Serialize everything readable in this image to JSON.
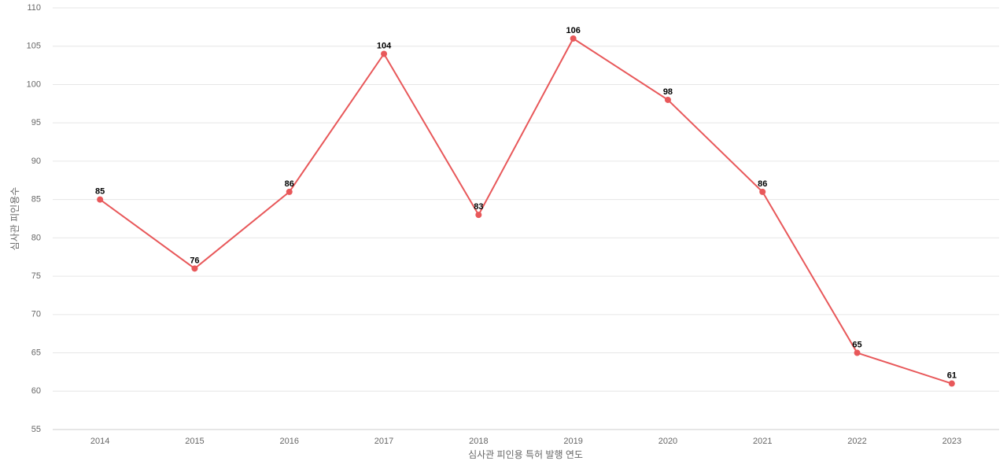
{
  "chart_data": {
    "type": "line",
    "x_label": "심사관 피인용 특허 발행 연도",
    "y_label": "심사관 피인용수",
    "categories": [
      "2014",
      "2015",
      "2016",
      "2017",
      "2018",
      "2019",
      "2020",
      "2021",
      "2022",
      "2023"
    ],
    "values": [
      85,
      76,
      86,
      104,
      83,
      106,
      98,
      86,
      65,
      61
    ],
    "color": "#e8585a",
    "ylim": [
      55,
      110
    ],
    "yticks": [
      55,
      60,
      65,
      70,
      75,
      80,
      85,
      90,
      95,
      100,
      105,
      110
    ],
    "grid": true
  }
}
